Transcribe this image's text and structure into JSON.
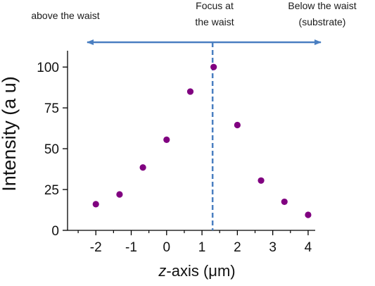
{
  "annotations": {
    "left": "above the waist",
    "middle_line1": "Focus at",
    "middle_line2": "the waist",
    "right_line1": "Below the waist",
    "right_line2": "(substrate)"
  },
  "colors": {
    "arrow": "#4a7fc1",
    "focus_line": "#4a7fc1",
    "points": "#800080",
    "axis": "#000000"
  },
  "chart_data": {
    "type": "scatter",
    "title": "",
    "xlabel": "z-axis (μm)",
    "ylabel": "Intensity (a u)",
    "xlim": [
      -2.8,
      4.2
    ],
    "ylim": [
      0,
      110
    ],
    "x_ticks": [
      -2,
      -1,
      0,
      1,
      2,
      3,
      4
    ],
    "x_minor_ticks": [
      -2.5,
      -1.5,
      -0.5,
      0.5,
      1.5,
      2.5,
      3.5
    ],
    "y_ticks": [
      0,
      25,
      50,
      75,
      100
    ],
    "grid": false,
    "legend": "none",
    "focus_line_x": 1.3,
    "x": [
      -2,
      -1.33,
      -0.67,
      0,
      0.67,
      1.33,
      2,
      2.67,
      3.33,
      4
    ],
    "y": [
      16,
      22,
      38.5,
      55.5,
      85,
      100,
      64.5,
      30.5,
      17.5,
      9.5
    ]
  }
}
